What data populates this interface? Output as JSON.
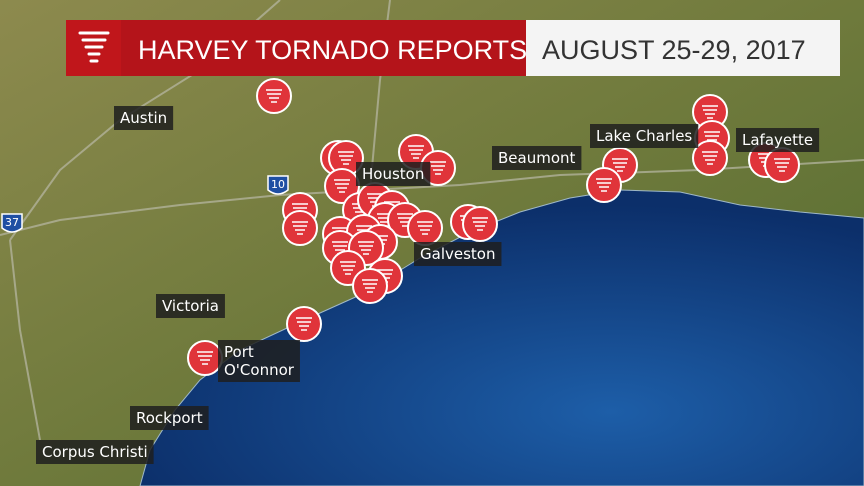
{
  "header": {
    "title": "HARVEY TORNADO REPORTS",
    "date": "AUGUST 25-29, 2017"
  },
  "highways": [
    "10",
    "37"
  ],
  "cities": [
    {
      "lines": [
        "Austin"
      ]
    },
    {
      "lines": [
        "Houston"
      ]
    },
    {
      "lines": [
        "Victoria"
      ]
    },
    {
      "lines": [
        "Port",
        "O'Connor"
      ]
    },
    {
      "lines": [
        "Rockport"
      ]
    },
    {
      "lines": [
        "Corpus Christi"
      ]
    },
    {
      "lines": [
        "Beaumont"
      ]
    },
    {
      "lines": [
        "Galveston"
      ]
    },
    {
      "lines": [
        "Lake Charles"
      ]
    },
    {
      "lines": [
        "Lafayette"
      ]
    }
  ]
}
